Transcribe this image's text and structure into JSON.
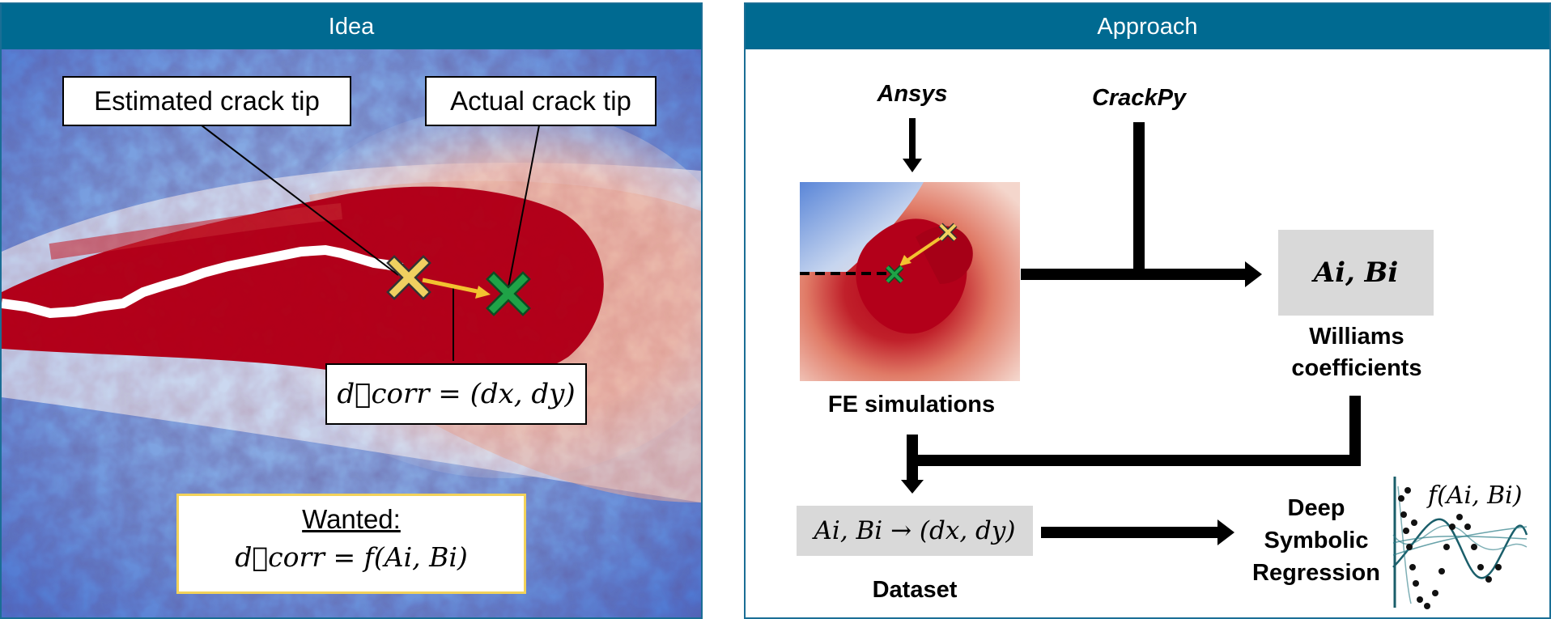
{
  "left_panel": {
    "title": "Idea",
    "estimated_label": "Estimated crack tip",
    "actual_label": "Actual crack tip",
    "dcorr_equation": "d⃗corr = (dx, dy)",
    "wanted_title": "Wanted:",
    "wanted_equation": "d⃗corr = f(Ai, Bi)"
  },
  "right_panel": {
    "title": "Approach",
    "ansys_label": "Ansys",
    "crackpy_label": "CrackPy",
    "fe_label": "FE simulations",
    "coeff_box": "Ai, Bi",
    "williams_label_line1": "Williams",
    "williams_label_line2": "coefficients",
    "dataset_box": "Ai, Bi → (dx, dy)",
    "dataset_label": "Dataset",
    "dsr_line1": "Deep",
    "dsr_line2": "Symbolic",
    "dsr_line3": "Regression",
    "fn_label": "f(Ai, Bi)"
  },
  "colors": {
    "header": "#006a91",
    "border": "#1a6e95",
    "field_blue": "#5b86d6",
    "field_red": "#b30017",
    "estimated_marker": "#f0d060",
    "actual_marker": "#1fa347",
    "arrow": "#f2c230",
    "wanted_border": "#f2d25a",
    "teal": "#1a5e6a"
  }
}
